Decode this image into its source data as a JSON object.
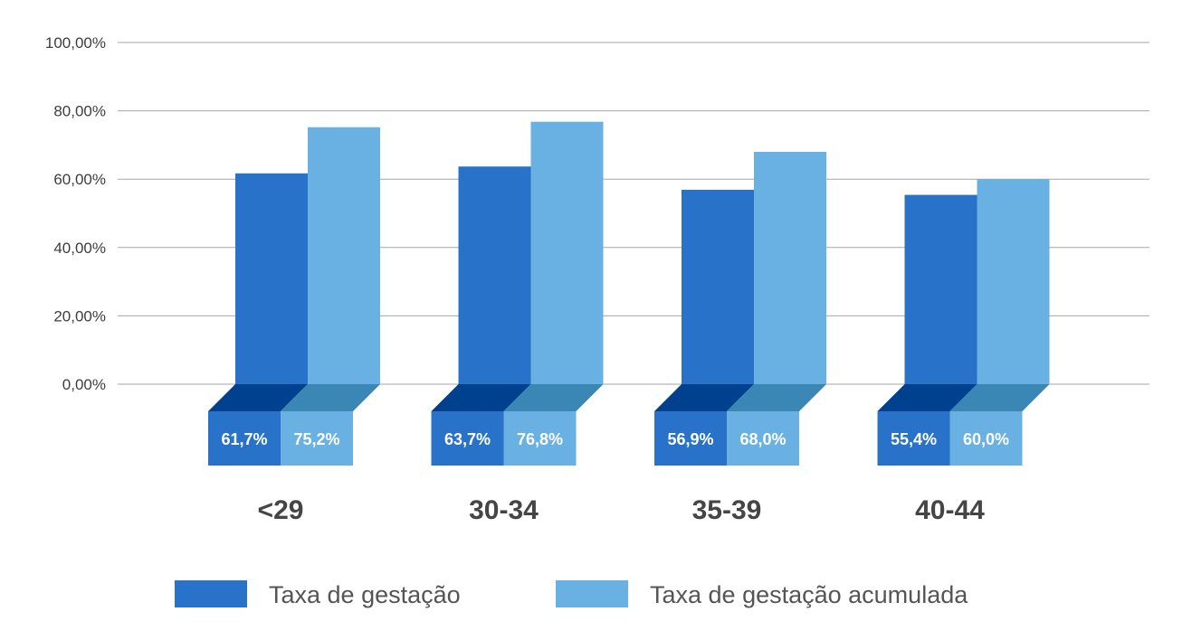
{
  "chart_data": {
    "type": "bar",
    "categories": [
      "<29",
      "30-34",
      "35-39",
      "40-44"
    ],
    "series": [
      {
        "name": "Taxa de gestação",
        "values": [
          61.7,
          63.7,
          56.9,
          55.4
        ],
        "labels": [
          "61,7%",
          "63,7%",
          "56,9%",
          "55,4%"
        ],
        "color": "#2872C9",
        "dark_color": "#00418F"
      },
      {
        "name": "Taxa de gestação acumulada",
        "values": [
          75.2,
          76.8,
          68.0,
          60.0
        ],
        "labels": [
          "75,2%",
          "76,8%",
          "68,0%",
          "60,0%"
        ],
        "color": "#6AB1E3",
        "dark_color": "#3A86B5"
      }
    ],
    "ylim": [
      0,
      100
    ],
    "yticks": [
      "0,00%",
      "20,00%",
      "40,00%",
      "60,00%",
      "80,00%",
      "100,00%"
    ],
    "grid": true,
    "legend_position": "bottom",
    "xlabel": "",
    "ylabel": "",
    "title": ""
  }
}
